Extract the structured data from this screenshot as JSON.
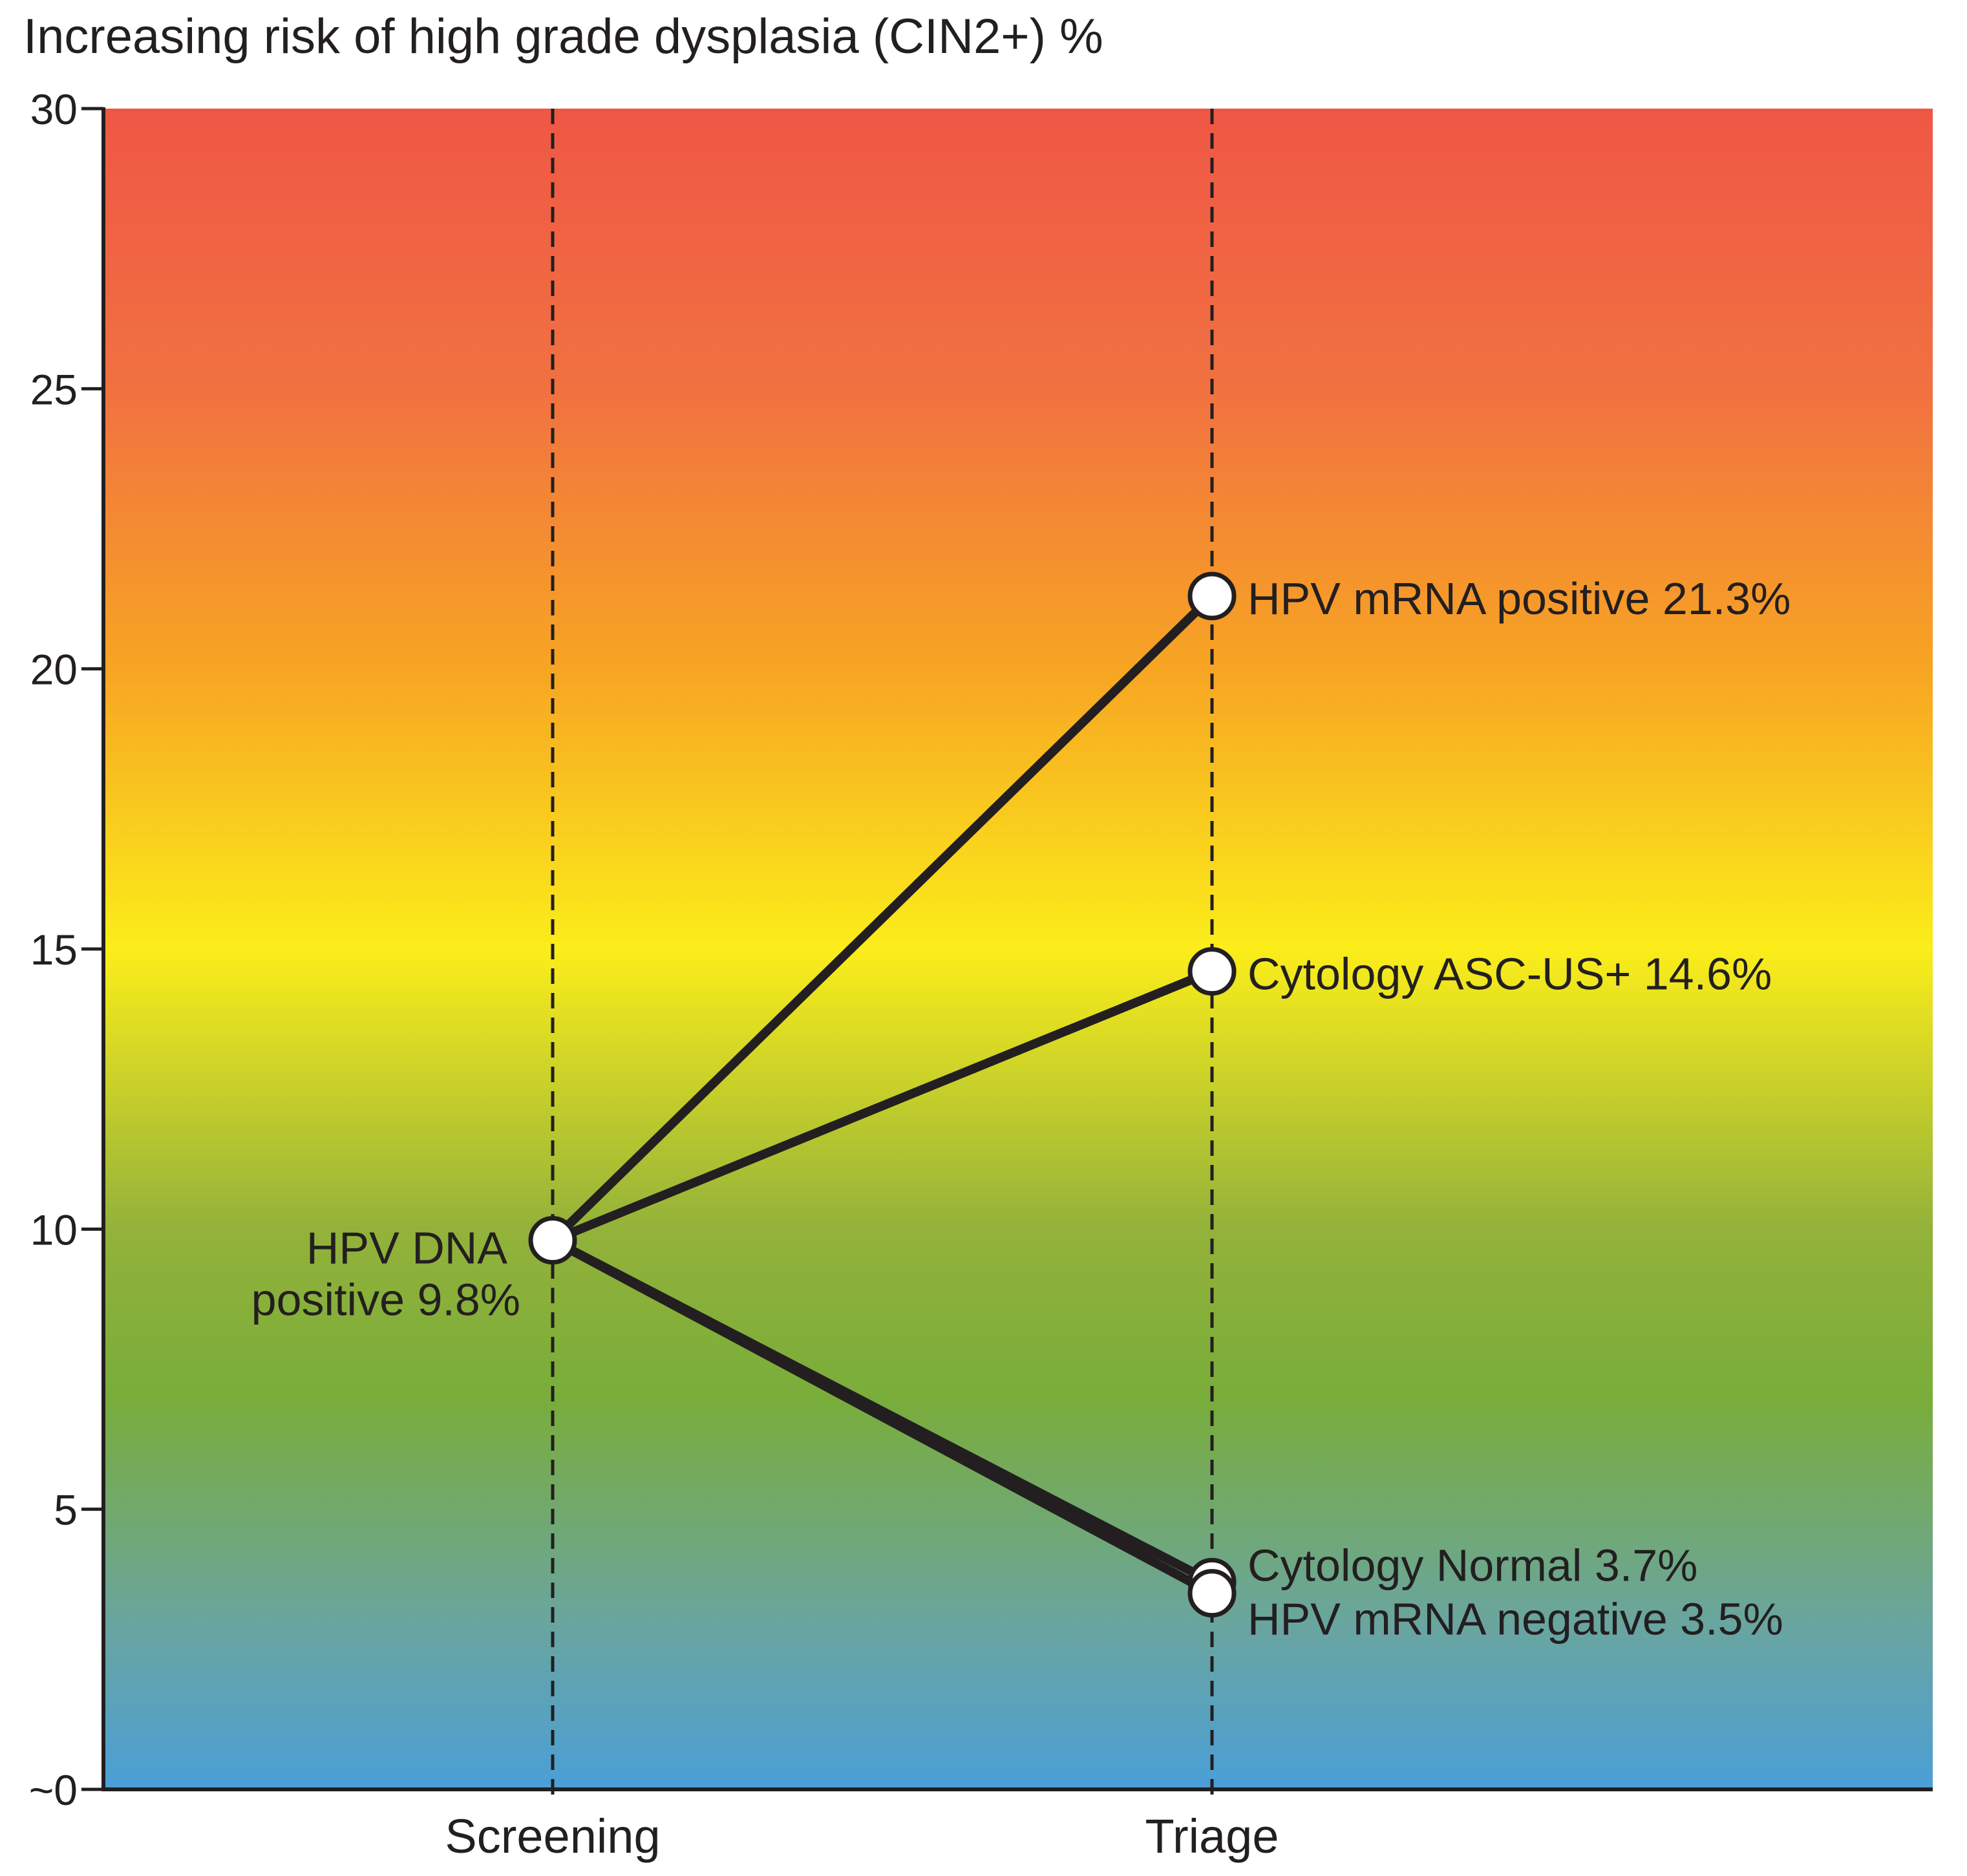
{
  "chart_data": {
    "type": "line",
    "title": "",
    "ylabel": "Increasing risk of high grade dysplasia (CIN2+) %",
    "xlabel": "",
    "ylim": [
      0,
      30
    ],
    "yticks": [
      {
        "value": 0,
        "label": "~0"
      },
      {
        "value": 5,
        "label": "5"
      },
      {
        "value": 10,
        "label": "10"
      },
      {
        "value": 15,
        "label": "15"
      },
      {
        "value": 20,
        "label": "20"
      },
      {
        "value": 25,
        "label": "25"
      },
      {
        "value": 30,
        "label": "30"
      }
    ],
    "categories": [
      "Screening",
      "Triage"
    ],
    "background_gradient": [
      {
        "value": 30,
        "color": "#ef5745"
      },
      {
        "value": 25,
        "color": "#f17141"
      },
      {
        "value": 20,
        "color": "#f7a523"
      },
      {
        "value": 15,
        "color": "#fbed1a"
      },
      {
        "value": 10,
        "color": "#93b23a"
      },
      {
        "value": 7,
        "color": "#79ad3a"
      },
      {
        "value": 3,
        "color": "#6aa59e"
      },
      {
        "value": 0,
        "color": "#4b9fd8"
      }
    ],
    "screening_point": {
      "name": "HPV DNA positive",
      "value": 9.8,
      "label_line1": "HPV DNA",
      "label_line2": "positive 9.8%"
    },
    "series": [
      {
        "name": "HPV mRNA positive",
        "values": [
          9.8,
          21.3
        ],
        "label": "HPV mRNA positive 21.3%"
      },
      {
        "name": "Cytology ASC-US+",
        "values": [
          9.8,
          14.6
        ],
        "label": "Cytology ASC-US+ 14.6%"
      },
      {
        "name": "Cytology Normal",
        "values": [
          9.8,
          3.7
        ],
        "label": "Cytology Normal 3.7%"
      },
      {
        "name": "HPV mRNA negative",
        "values": [
          9.8,
          3.5
        ],
        "label": "HPV mRNA negative 3.5%"
      }
    ],
    "line_color": "#231f20",
    "marker_fill": "#ffffff",
    "grid": false
  }
}
